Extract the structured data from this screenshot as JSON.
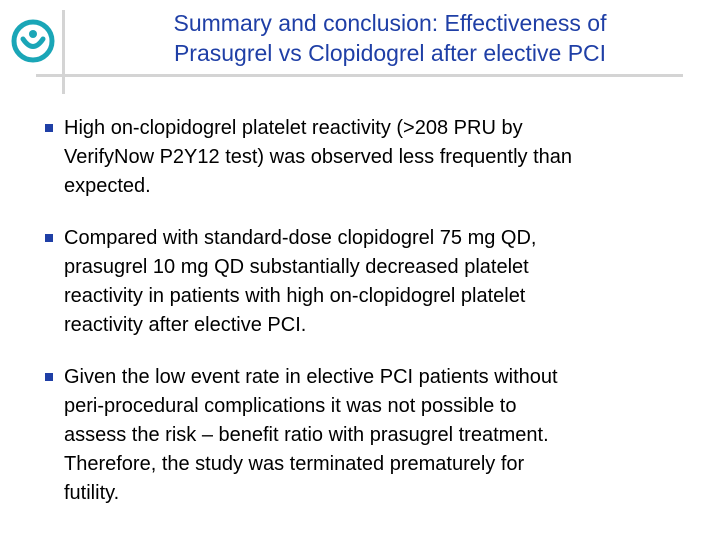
{
  "title": {
    "lines": [
      "Summary and conclusion: Effectiveness of",
      "Prasugrel vs Clopidogrel after elective PCI"
    ]
  },
  "colors": {
    "accent": "#1f3fa6",
    "logo": "#1aa6b7",
    "rule": "#d4d4d4"
  },
  "bullets": [
    {
      "lines": [
        "High on-clopidogrel platelet reactivity (>208 PRU by",
        "VerifyNow P2Y12 test) was observed less frequently than",
        "expected."
      ]
    },
    {
      "lines": [
        "Compared with standard-dose clopidogrel 75 mg QD,",
        "prasugrel 10 mg QD substantially decreased platelet",
        "reactivity in patients with high on-clopidogrel platelet",
        "reactivity after elective PCI."
      ]
    },
    {
      "lines": [
        "Given the low event rate in elective PCI patients without",
        "peri-procedural complications it was not possible to",
        "assess the risk – benefit ratio with prasugrel treatment.",
        "Therefore, the study was terminated prematurely for",
        "futility."
      ]
    }
  ]
}
